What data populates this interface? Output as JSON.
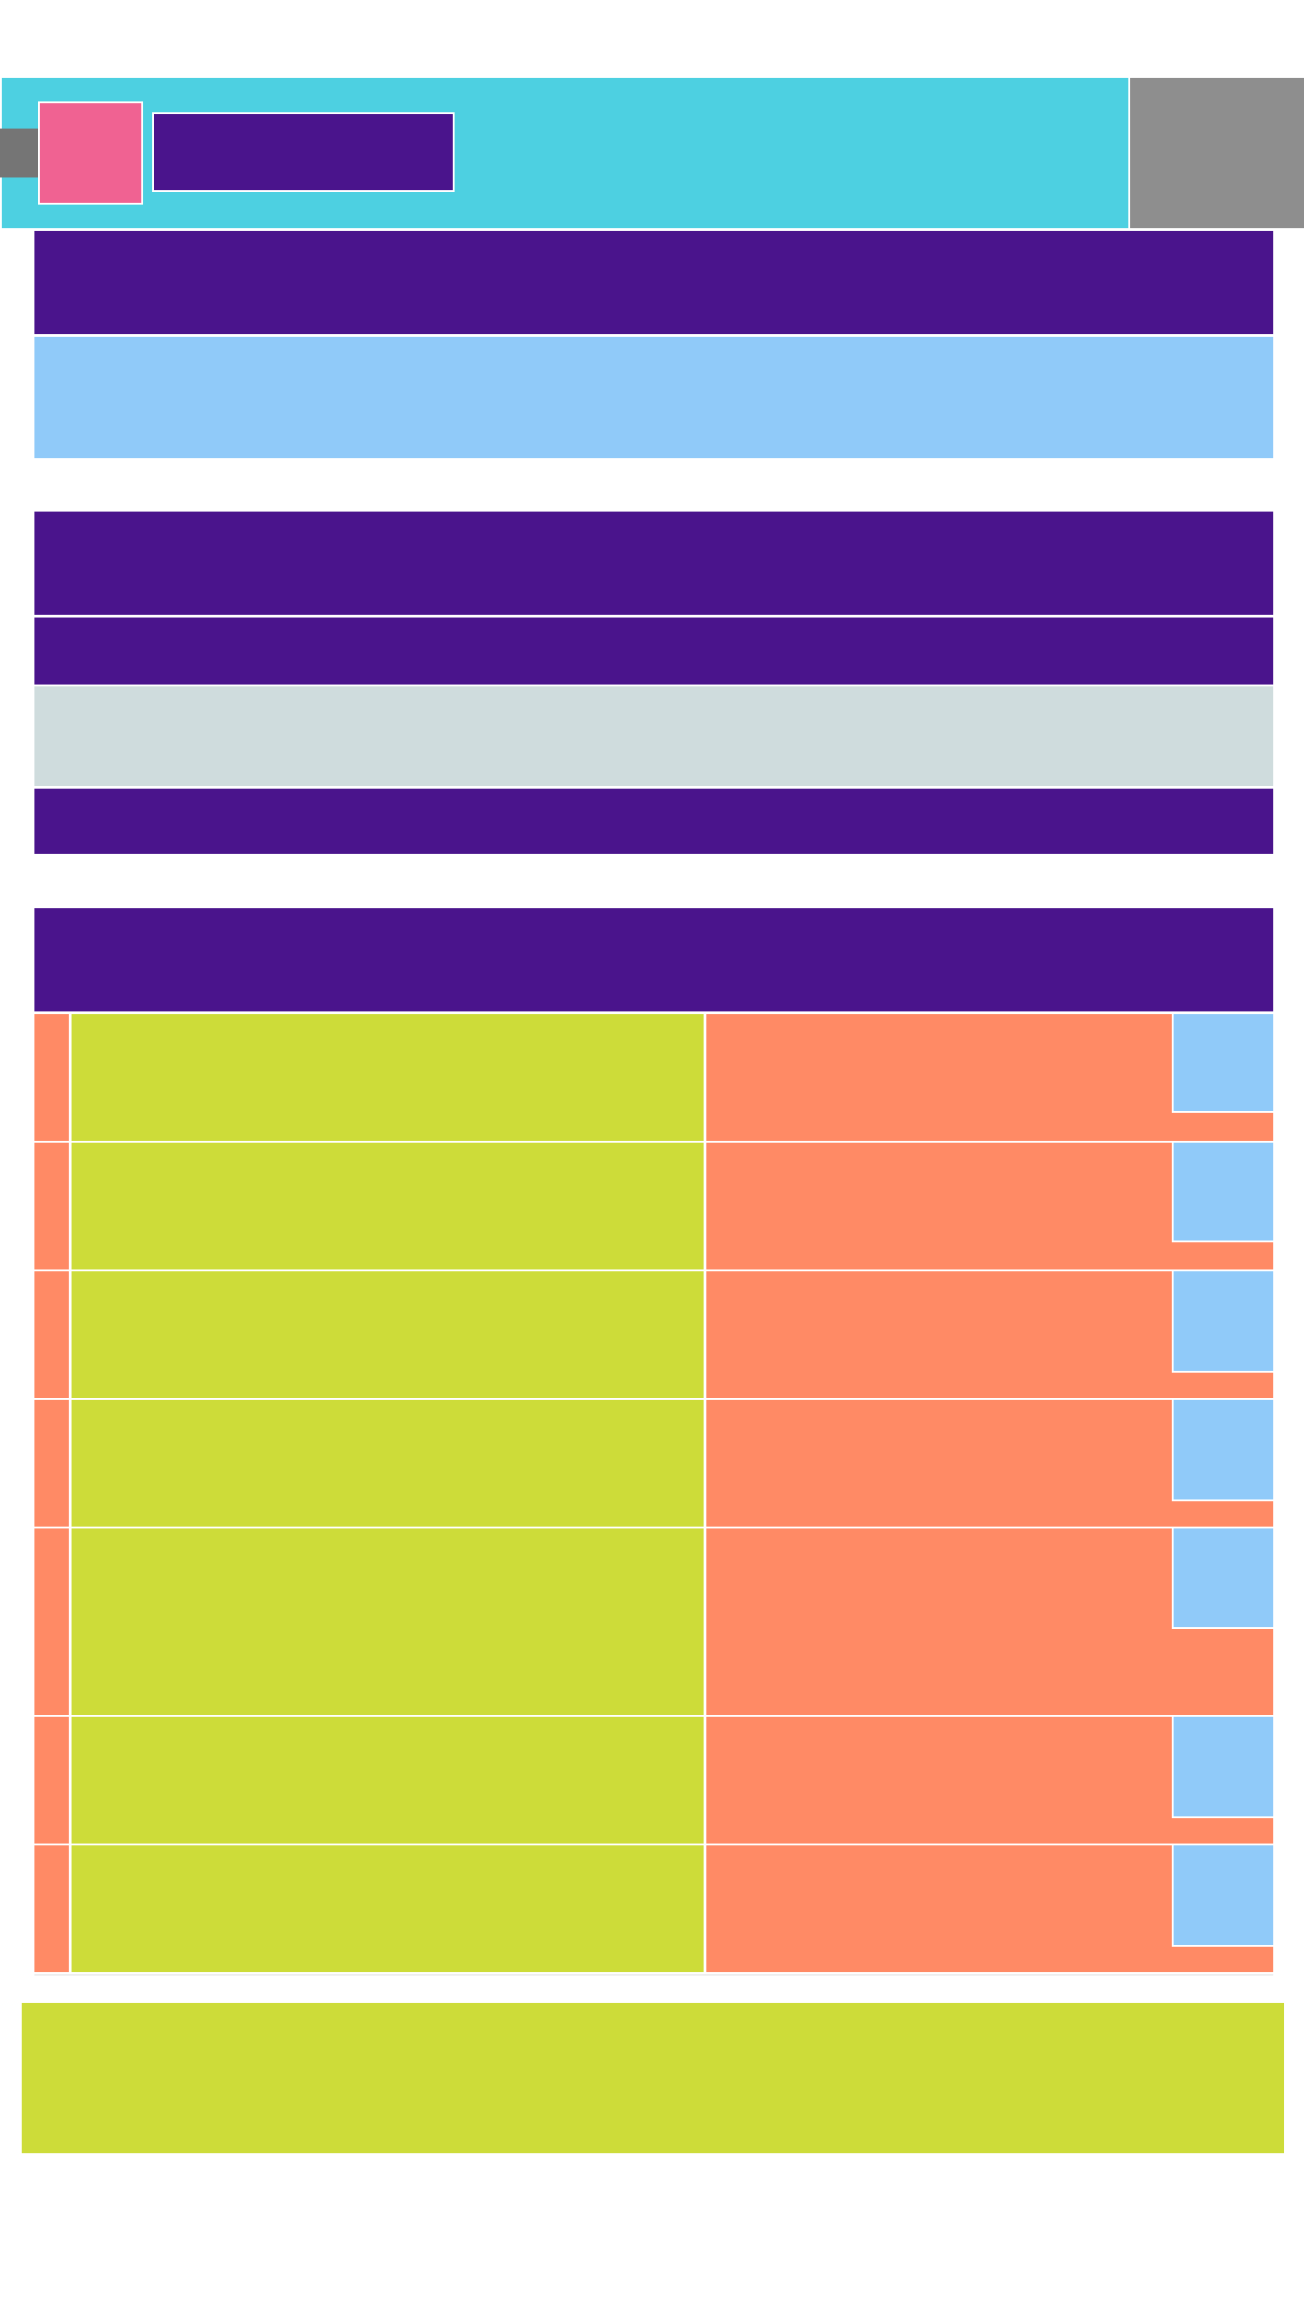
{
  "theme": {
    "header_bg": "#4dd0e1",
    "header_side_panel": "#8e8e8e",
    "header_edge_tab": "#757575",
    "avatar": "#f06292",
    "header_title_block": "#4a148c",
    "section_header": "#4a148c",
    "notice_panel": "#90caf9",
    "info_panel": "#cfdcdd",
    "row_index_cell": "#ff8a65",
    "row_main_cell": "#cddc39",
    "row_side_cell": "#ff8a65",
    "row_thumbnail": "#90caf9",
    "footer_bg": "#cddc39"
  },
  "header": {
    "title": "",
    "side_panel_label": ""
  },
  "overview": {
    "title": "",
    "notice": ""
  },
  "details": {
    "title": "",
    "subtitle": "",
    "info": "",
    "action": ""
  },
  "list": {
    "title": "",
    "items": [
      {
        "index": "",
        "main": "",
        "side": ""
      },
      {
        "index": "",
        "main": "",
        "side": ""
      },
      {
        "index": "",
        "main": "",
        "side": ""
      },
      {
        "index": "",
        "main": "",
        "side": ""
      },
      {
        "index": "",
        "main": "",
        "side": ""
      },
      {
        "index": "",
        "main": "",
        "side": ""
      },
      {
        "index": "",
        "main": "",
        "side": ""
      }
    ]
  },
  "footer": {
    "text": ""
  }
}
